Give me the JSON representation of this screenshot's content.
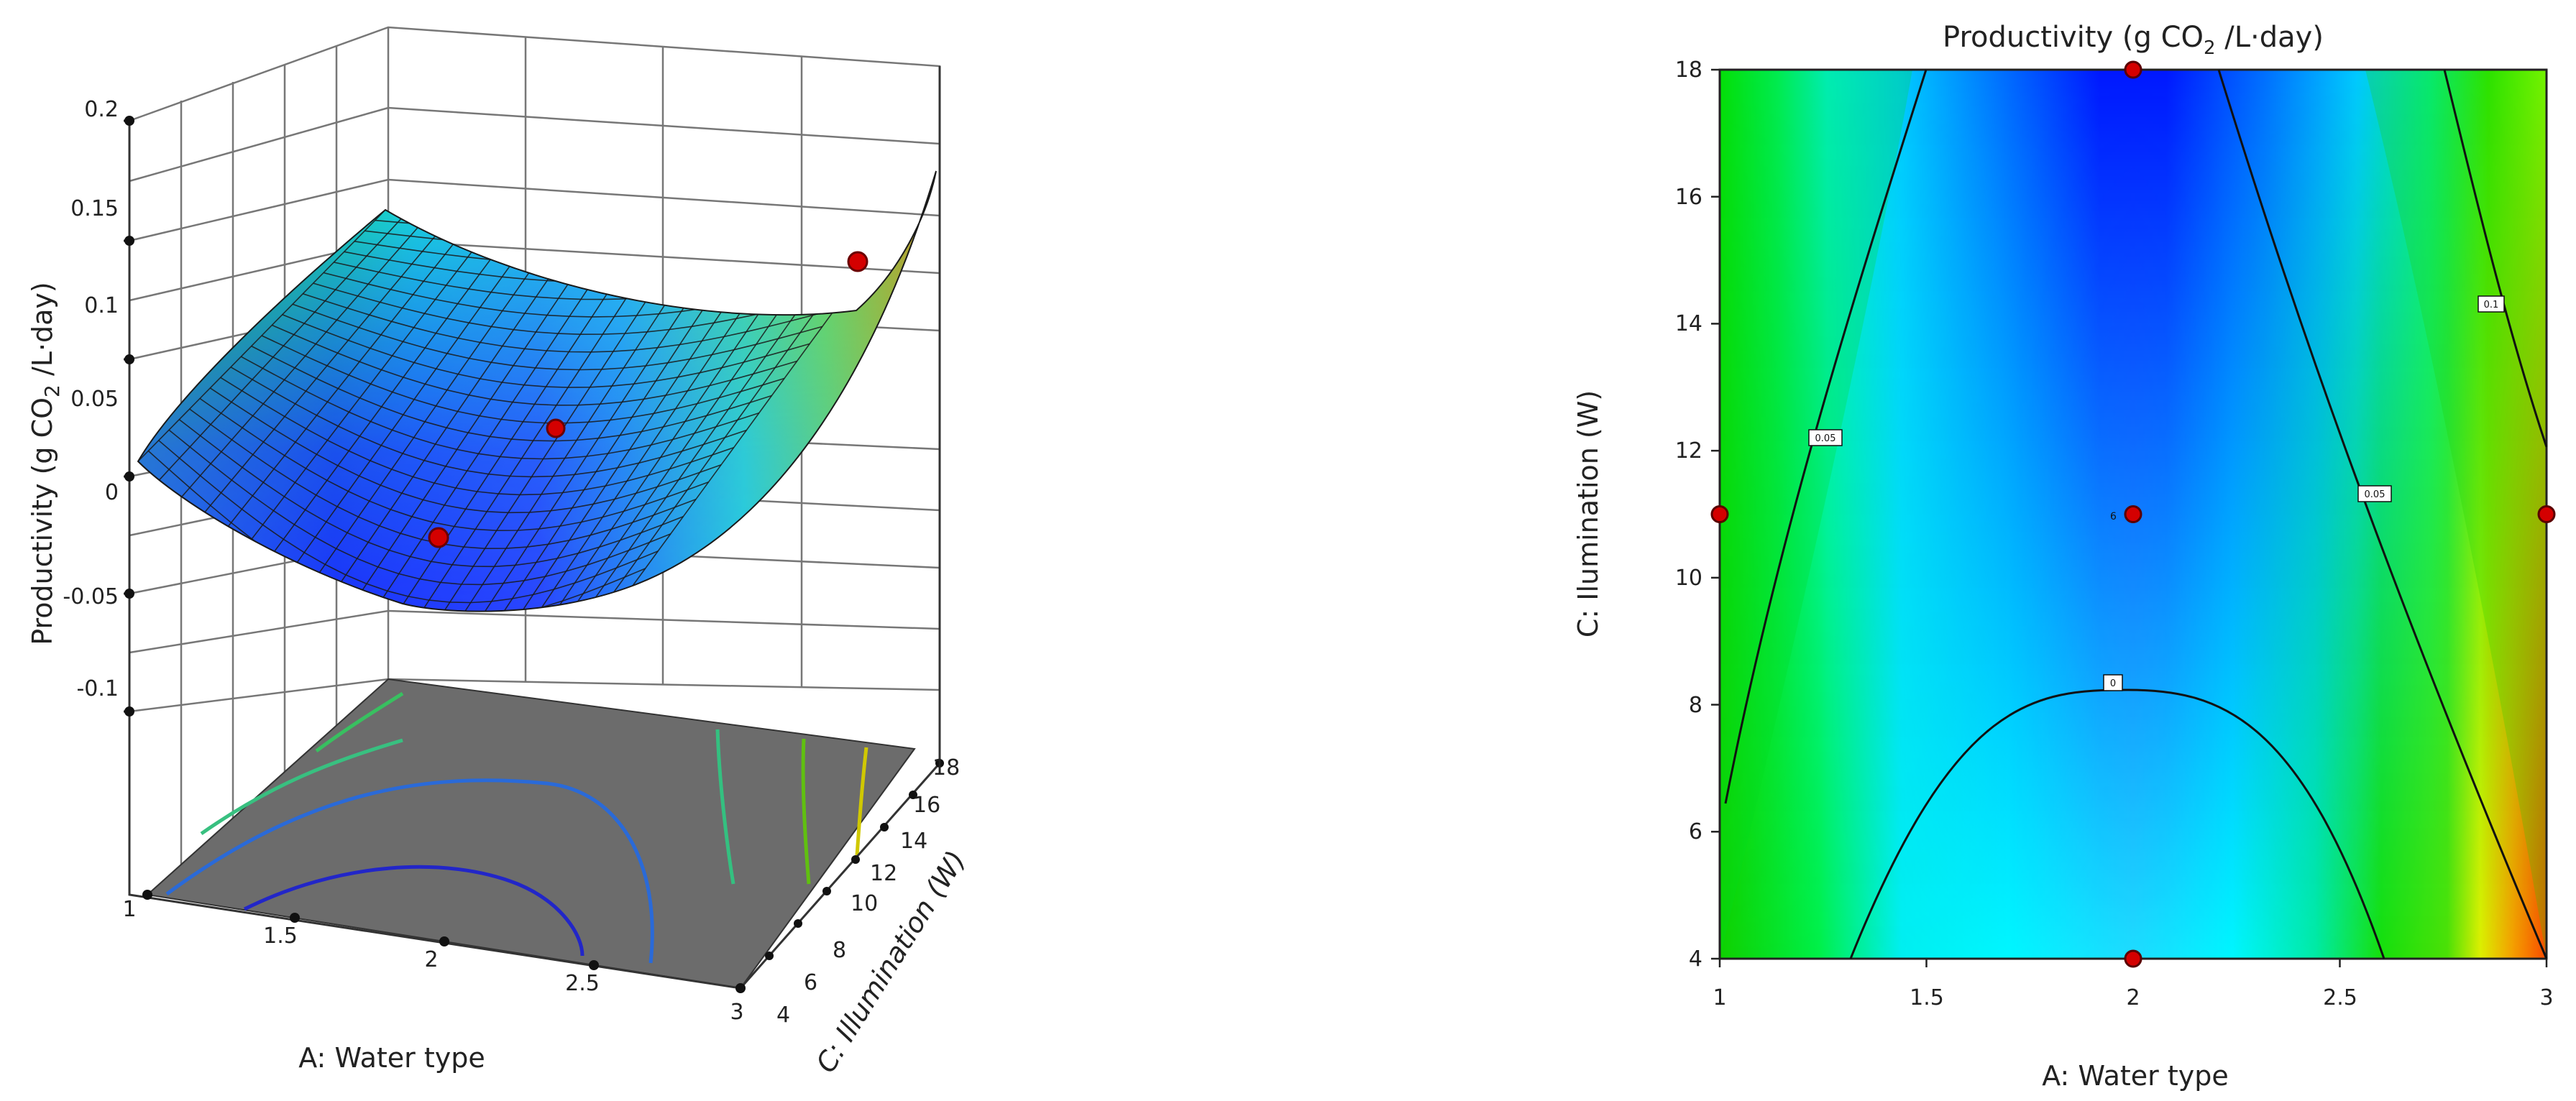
{
  "chart_data": [
    {
      "type": "surface3d",
      "title": "",
      "zlabel": "Productivity (g CO2 /L·day)",
      "xlabel": "A: Water type",
      "ylabel": "C: Illumination (W)",
      "xlim": [
        1,
        3
      ],
      "ylim": [
        4,
        18
      ],
      "zlim": [
        -0.1,
        0.2
      ],
      "x_ticks": [
        "1",
        "1.5",
        "2",
        "2.5",
        "3"
      ],
      "y_ticks": [
        "4",
        "6",
        "8",
        "10",
        "12",
        "14",
        "16",
        "18"
      ],
      "z_ticks": [
        "-0.1",
        "-0.05",
        "0",
        "0.05",
        "0.1",
        "0.15",
        "0.2"
      ],
      "design_points": [
        {
          "x": 2,
          "y": 4,
          "z": -0.005
        },
        {
          "x": 2,
          "y": 11,
          "z": 0.012
        },
        {
          "x": 3,
          "y": 11,
          "z": 0.123
        }
      ],
      "floor_contours": true,
      "colormap": [
        "#0000ff",
        "#00ffff",
        "#00ff00",
        "#ffff00",
        "#ff0000"
      ]
    },
    {
      "type": "contour",
      "title": "Productivity (g CO",
      "title_sub": "2",
      "title_end": " /L·day)",
      "xlabel": "A: Water type",
      "ylabel": "C: Ilumination (W)",
      "xlim": [
        1,
        3
      ],
      "ylim": [
        4,
        18
      ],
      "x_ticks": [
        "1",
        "1.5",
        "2",
        "2.5",
        "3"
      ],
      "y_ticks": [
        "4",
        "6",
        "8",
        "10",
        "12",
        "14",
        "16",
        "18"
      ],
      "contour_levels": [
        "0",
        "0.05",
        "0.05",
        "0.1"
      ],
      "center_point_label": "6",
      "design_points": [
        {
          "x": 2,
          "y": 18
        },
        {
          "x": 1,
          "y": 11
        },
        {
          "x": 2,
          "y": 11
        },
        {
          "x": 3,
          "y": 11
        },
        {
          "x": 2,
          "y": 4
        }
      ],
      "colormap": [
        "#0000ff",
        "#00ffff",
        "#00ff00",
        "#ffff00",
        "#ff0000"
      ]
    }
  ]
}
